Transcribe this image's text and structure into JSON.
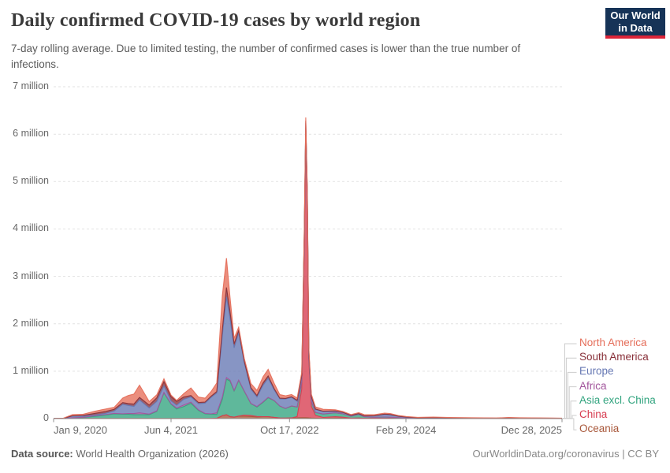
{
  "header": {
    "title": "Daily confirmed COVID-19 cases by world region",
    "subtitle": "7-day rolling average. Due to limited testing, the number of confirmed cases is lower than the true number of infections.",
    "logo": {
      "line1": "Our World",
      "line2": "in Data",
      "bg_color": "#163357",
      "accent_color": "#dc2438"
    }
  },
  "footer": {
    "source_label": "Data source:",
    "source_text": " World Health Organization (2026)",
    "credit": "OurWorldinData.org/coronavirus | CC BY"
  },
  "legend": {
    "position": "right",
    "items": [
      {
        "label": "North America",
        "color": "#e56e5a"
      },
      {
        "label": "South America",
        "color": "#883039"
      },
      {
        "label": "Europe",
        "color": "#6577b3"
      },
      {
        "label": "Africa",
        "color": "#a2559c"
      },
      {
        "label": "Asia excl. China",
        "color": "#32a47f"
      },
      {
        "label": "China",
        "color": "#d73c50"
      },
      {
        "label": "Oceania",
        "color": "#a8573a"
      }
    ]
  },
  "chart_data": {
    "type": "area",
    "stacked": true,
    "title": "Daily confirmed COVID-19 cases by world region",
    "xlabel": "",
    "ylabel": "",
    "unit": "million cases per day (7-day rolling average)",
    "grid": "dashed-horizontal",
    "x_range_labels": [
      "Jan 9, 2020",
      "Dec 28, 2025"
    ],
    "y_axis": {
      "max": 7,
      "labels": [
        "0",
        "1 million",
        "2 million",
        "3 million",
        "4 million",
        "5 million",
        "6 million",
        "7 million"
      ]
    },
    "x_axis": {
      "ticks": [
        {
          "label": "Jan 9, 2020",
          "f": 0.0,
          "align": "left"
        },
        {
          "label": "Jun 4, 2021",
          "f": 0.231,
          "align": "center"
        },
        {
          "label": "Oct 17, 2022",
          "f": 0.464,
          "align": "center"
        },
        {
          "label": "Feb 29, 2024",
          "f": 0.693,
          "align": "center"
        },
        {
          "label": "Dec 28, 2025",
          "f": 1.0,
          "align": "right"
        }
      ]
    },
    "x": [
      0,
      0.019,
      0.037,
      0.057,
      0.081,
      0.101,
      0.119,
      0.136,
      0.147,
      0.158,
      0.169,
      0.188,
      0.203,
      0.217,
      0.231,
      0.242,
      0.256,
      0.27,
      0.285,
      0.298,
      0.31,
      0.321,
      0.332,
      0.34,
      0.347,
      0.355,
      0.364,
      0.375,
      0.388,
      0.4,
      0.412,
      0.422,
      0.434,
      0.445,
      0.456,
      0.468,
      0.479,
      0.488,
      0.493,
      0.496,
      0.499,
      0.502,
      0.507,
      0.515,
      0.53,
      0.554,
      0.569,
      0.585,
      0.6,
      0.611,
      0.631,
      0.651,
      0.662,
      0.678,
      0.693,
      0.716,
      0.747,
      0.778,
      0.825,
      0.871,
      0.895,
      0.918,
      0.964,
      1.0
    ],
    "series": [
      {
        "name": "North America",
        "color": "#e56e5a",
        "values": [
          0.001,
          0.001,
          0.026,
          0.023,
          0.048,
          0.052,
          0.042,
          0.095,
          0.17,
          0.21,
          0.26,
          0.075,
          0.065,
          0.06,
          0.032,
          0.022,
          0.07,
          0.16,
          0.115,
          0.08,
          0.1,
          0.18,
          0.72,
          0.62,
          0.3,
          0.12,
          0.07,
          0.06,
          0.09,
          0.11,
          0.13,
          0.14,
          0.11,
          0.075,
          0.055,
          0.05,
          0.05,
          0.06,
          0.065,
          0.07,
          0.065,
          0.06,
          0.05,
          0.045,
          0.04,
          0.025,
          0.02,
          0.015,
          0.02,
          0.025,
          0.02,
          0.02,
          0.02,
          0.015,
          0.012,
          0.008,
          0.01,
          0.007,
          0.005,
          0.003,
          0.004,
          0.005,
          0.003,
          0.002
        ]
      },
      {
        "name": "South America",
        "color": "#883039",
        "values": [
          0,
          0,
          0.005,
          0.02,
          0.035,
          0.04,
          0.035,
          0.035,
          0.04,
          0.05,
          0.055,
          0.06,
          0.075,
          0.09,
          0.09,
          0.08,
          0.05,
          0.03,
          0.025,
          0.022,
          0.025,
          0.03,
          0.12,
          0.2,
          0.15,
          0.08,
          0.045,
          0.03,
          0.03,
          0.03,
          0.05,
          0.05,
          0.03,
          0.015,
          0.012,
          0.012,
          0.02,
          0.04,
          0.04,
          0.04,
          0.035,
          0.03,
          0.02,
          0.012,
          0.01,
          0.008,
          0.006,
          0.004,
          0.004,
          0.004,
          0.005,
          0.006,
          0.008,
          0.005,
          0.004,
          0.002,
          0.002,
          0.002,
          0.001,
          0.001,
          0.001,
          0.001,
          0.001,
          0.001
        ]
      },
      {
        "name": "Europe",
        "color": "#6577b3",
        "values": [
          0,
          0.001,
          0.035,
          0.02,
          0.015,
          0.025,
          0.05,
          0.2,
          0.17,
          0.15,
          0.27,
          0.13,
          0.2,
          0.14,
          0.06,
          0.06,
          0.12,
          0.11,
          0.13,
          0.22,
          0.35,
          0.42,
          1.3,
          1.7,
          1.3,
          0.9,
          1.0,
          0.6,
          0.3,
          0.2,
          0.35,
          0.4,
          0.22,
          0.15,
          0.2,
          0.18,
          0.12,
          0.1,
          0.1,
          0.1,
          0.09,
          0.085,
          0.08,
          0.06,
          0.05,
          0.03,
          0.025,
          0.015,
          0.012,
          0.015,
          0.03,
          0.055,
          0.05,
          0.025,
          0.015,
          0.008,
          0.008,
          0.006,
          0.005,
          0.003,
          0.003,
          0.004,
          0.003,
          0.002
        ]
      },
      {
        "name": "Africa",
        "color": "#a2559c",
        "values": [
          0,
          0,
          0.002,
          0.004,
          0.012,
          0.011,
          0.008,
          0.01,
          0.015,
          0.025,
          0.04,
          0.012,
          0.01,
          0.008,
          0.012,
          0.02,
          0.035,
          0.025,
          0.012,
          0.006,
          0.006,
          0.035,
          0.045,
          0.035,
          0.02,
          0.012,
          0.008,
          0.005,
          0.005,
          0.01,
          0.01,
          0.008,
          0.005,
          0.003,
          0.002,
          0.002,
          0.002,
          0.002,
          0.002,
          0.002,
          0.002,
          0.002,
          0.002,
          0.002,
          0.002,
          0.001,
          0.001,
          0.001,
          0.001,
          0.001,
          0.001,
          0.001,
          0.001,
          0.001,
          0.001,
          0.001,
          0.001,
          0.001,
          0.001,
          0.001,
          0.001,
          0.001,
          0.001,
          0.001
        ]
      },
      {
        "name": "Asia excl. China",
        "color": "#32a47f",
        "values": [
          0.001,
          0.002,
          0.015,
          0.02,
          0.045,
          0.07,
          0.1,
          0.09,
          0.09,
          0.08,
          0.08,
          0.08,
          0.15,
          0.54,
          0.3,
          0.2,
          0.25,
          0.32,
          0.17,
          0.1,
          0.09,
          0.08,
          0.35,
          0.75,
          0.75,
          0.55,
          0.75,
          0.5,
          0.25,
          0.2,
          0.3,
          0.4,
          0.35,
          0.25,
          0.2,
          0.25,
          0.2,
          0.15,
          0.13,
          0.12,
          0.11,
          0.1,
          0.1,
          0.06,
          0.07,
          0.08,
          0.07,
          0.04,
          0.075,
          0.03,
          0.02,
          0.025,
          0.02,
          0.015,
          0.01,
          0.006,
          0.008,
          0.005,
          0.004,
          0.003,
          0.012,
          0.005,
          0.003,
          0.002
        ]
      },
      {
        "name": "China",
        "color": "#d73c50",
        "values": [
          0.001,
          0.004,
          0.001,
          0.001,
          0.001,
          0.001,
          0.001,
          0.001,
          0.001,
          0.001,
          0.001,
          0.001,
          0.001,
          0.001,
          0.001,
          0.001,
          0.001,
          0.001,
          0.001,
          0.001,
          0.001,
          0.001,
          0.001,
          0.001,
          0.002,
          0.002,
          0.004,
          0.025,
          0.02,
          0.01,
          0.002,
          0.001,
          0.001,
          0.001,
          0.002,
          0.003,
          0.028,
          0.6,
          3.6,
          6.0,
          4.5,
          1.2,
          0.25,
          0.06,
          0.02,
          0.03,
          0.02,
          0.005,
          0.008,
          0.005,
          0.003,
          0.003,
          0.003,
          0.002,
          0.001,
          0.001,
          0.001,
          0.001,
          0.001,
          0.001,
          0.001,
          0.001,
          0.001,
          0.001
        ]
      },
      {
        "name": "Oceania",
        "color": "#a8573a",
        "values": [
          0,
          0,
          0.001,
          0.001,
          0.001,
          0.001,
          0.001,
          0.001,
          0.001,
          0.001,
          0.001,
          0.001,
          0.001,
          0.001,
          0.001,
          0.001,
          0.001,
          0.001,
          0.001,
          0.001,
          0.002,
          0.005,
          0.06,
          0.08,
          0.04,
          0.03,
          0.05,
          0.05,
          0.045,
          0.035,
          0.04,
          0.04,
          0.025,
          0.012,
          0.01,
          0.012,
          0.015,
          0.02,
          0.02,
          0.02,
          0.018,
          0.015,
          0.012,
          0.008,
          0.005,
          0.012,
          0.01,
          0.005,
          0.005,
          0.004,
          0.003,
          0.004,
          0.004,
          0.003,
          0.002,
          0.001,
          0.001,
          0.001,
          0.001,
          0.001,
          0.001,
          0.001,
          0.001,
          0.001
        ]
      }
    ]
  }
}
